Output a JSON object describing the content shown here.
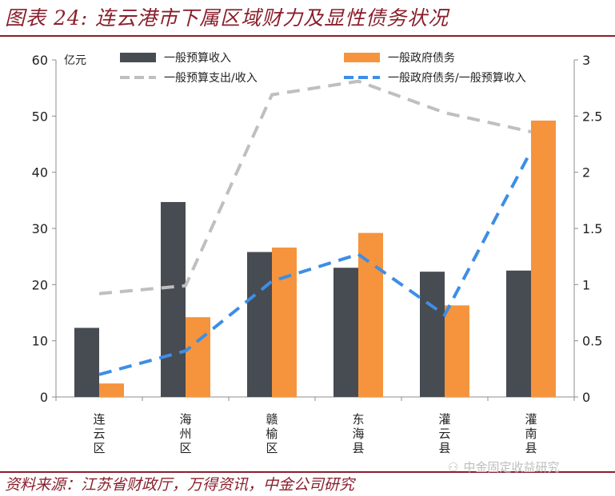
{
  "header": {
    "title": "图表 24: 连云港市下属区域财力及显性债务状况"
  },
  "footer": {
    "source": "资料来源：江苏省财政厅，万得资讯，中金公司研究",
    "watermark": "中金固定收益研究",
    "watermark_icon": "wechat-icon"
  },
  "colors": {
    "revenue": "#474b52",
    "debt": "#f5943d",
    "ratio_exp": "#bfbfbf",
    "ratio_debt": "#3d8ee6",
    "brand": "#8a1f2c"
  },
  "chart_data": {
    "type": "bar",
    "categories": [
      "连云区",
      "海州区",
      "赣榆区",
      "东海县",
      "灌云县",
      "灌南县"
    ],
    "yunit": "亿元",
    "ylim": [
      0,
      60
    ],
    "yticks": [
      0,
      10,
      20,
      30,
      40,
      50,
      60
    ],
    "y2lim": [
      0,
      3
    ],
    "y2ticks": [
      "0",
      "0.5",
      "1",
      "1.5",
      "2",
      "2.5",
      "3"
    ],
    "series": [
      {
        "name": "一般预算收入",
        "type": "bar",
        "axis": "left",
        "values": [
          12.3,
          34.7,
          25.8,
          23.0,
          22.3,
          22.5
        ]
      },
      {
        "name": "一般政府债务",
        "type": "bar",
        "axis": "left",
        "values": [
          2.4,
          14.2,
          26.6,
          29.2,
          16.3,
          49.2
        ]
      },
      {
        "name": "一般预算支出/收入",
        "type": "line",
        "axis": "right",
        "style": "dashed",
        "values": [
          0.92,
          0.99,
          2.69,
          2.81,
          2.53,
          2.36
        ]
      },
      {
        "name": "一般政府债务/一般预算收入",
        "type": "line",
        "axis": "right",
        "style": "dashed",
        "values": [
          0.2,
          0.41,
          1.03,
          1.27,
          0.73,
          2.19
        ]
      }
    ],
    "legend_position": "top",
    "grid": false
  }
}
